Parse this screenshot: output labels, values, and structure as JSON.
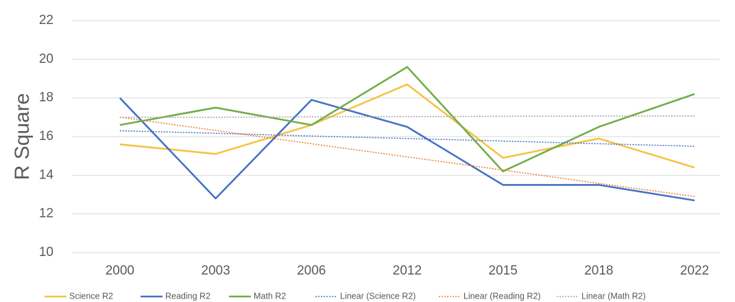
{
  "chart_data": {
    "type": "line",
    "y_label": "R Square",
    "categories": [
      "2000",
      "2003",
      "2006",
      "2012",
      "2015",
      "2018",
      "2022"
    ],
    "ylim": [
      10,
      22
    ],
    "yticks": [
      10,
      12,
      14,
      16,
      18,
      20,
      22
    ],
    "grid": true,
    "legend": "bottom",
    "series": [
      {
        "name": "Science R2",
        "color": "#f5c342",
        "dash": "solid",
        "values": [
          15.6,
          15.1,
          16.6,
          18.7,
          14.9,
          15.9,
          14.4
        ]
      },
      {
        "name": "Reading R2",
        "color": "#4472c4",
        "dash": "solid",
        "values": [
          18.0,
          12.8,
          17.9,
          16.5,
          13.5,
          13.5,
          12.7
        ]
      },
      {
        "name": "Math R2",
        "color": "#70ad47",
        "dash": "solid",
        "values": [
          16.6,
          17.5,
          16.6,
          19.6,
          14.2,
          16.5,
          18.2
        ]
      },
      {
        "name": "Linear (Science R2)",
        "color": "#4472c4",
        "dash": "dotted",
        "values": [
          16.3,
          16.17,
          16.03,
          15.9,
          15.77,
          15.63,
          15.5
        ]
      },
      {
        "name": "Linear (Reading R2)",
        "color": "#ed7d31",
        "dash": "dotted",
        "values": [
          17.0,
          16.32,
          15.63,
          14.95,
          14.27,
          13.58,
          12.9
        ]
      },
      {
        "name": "Linear (Math R2)",
        "color": "#a5a5a5",
        "dash": "dotted",
        "values": [
          17.0,
          17.0,
          17.02,
          17.03,
          17.05,
          17.06,
          17.07
        ]
      }
    ]
  }
}
